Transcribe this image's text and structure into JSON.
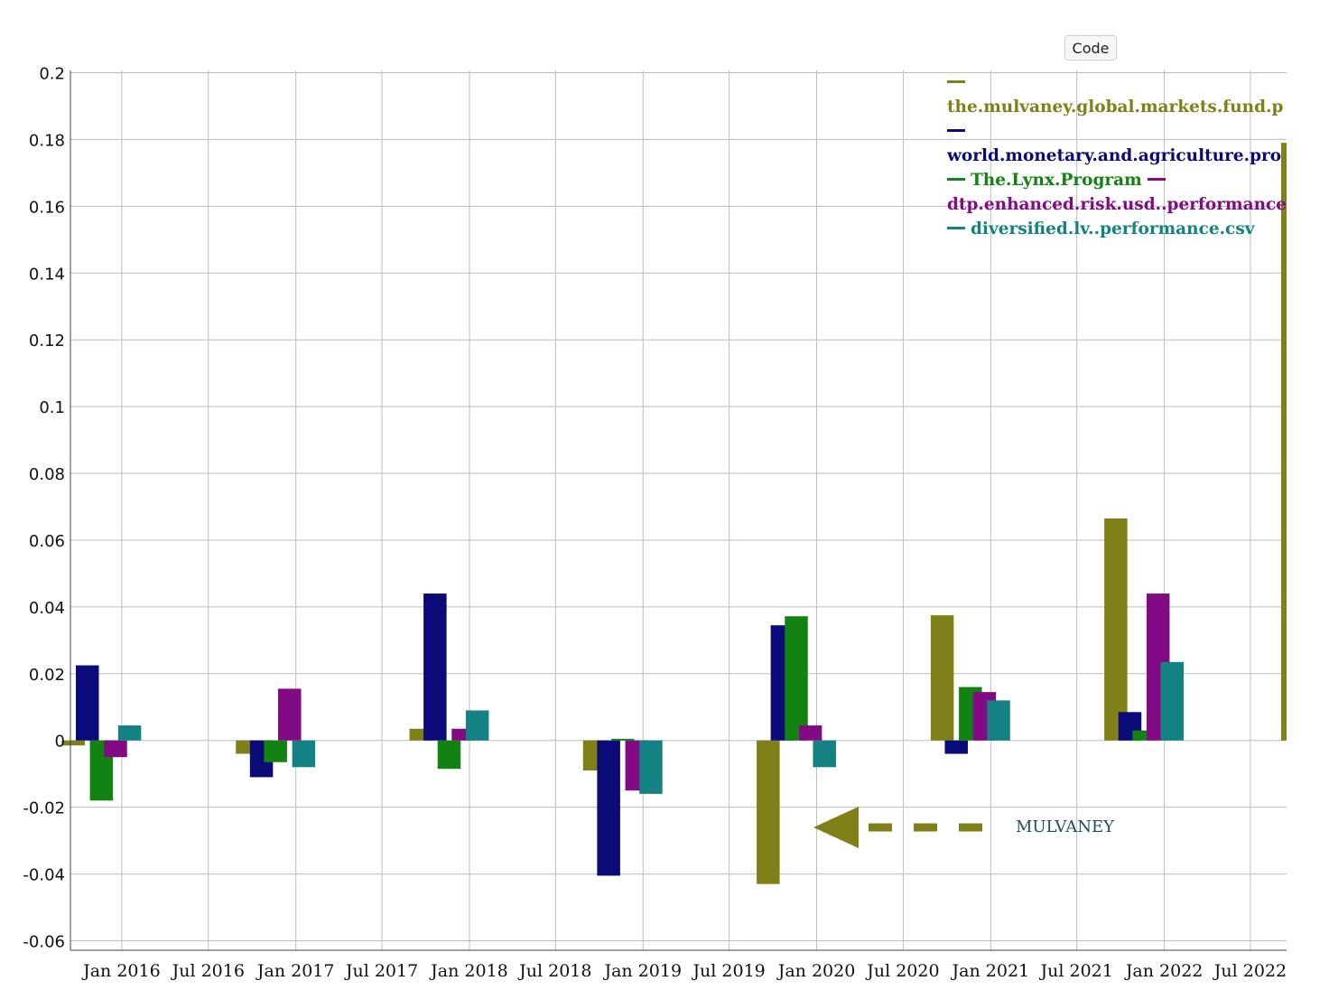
{
  "toolbar": {
    "code_label": "Code"
  },
  "annotation": {
    "text": "MULVANEY",
    "color": "#1f4e63",
    "arrow_color": "#808018"
  },
  "colors": {
    "mulvaney": "#808018",
    "world": "#0a0a78",
    "lynx": "#128212",
    "dtp": "#820a82",
    "diversified": "#148282"
  },
  "chart_data": {
    "type": "bar",
    "title": "",
    "xlabel": "",
    "ylabel": "",
    "ylim": [
      -0.06,
      0.2
    ],
    "y_ticks": [
      "0.2",
      "0.18",
      "0.16",
      "0.14",
      "0.12",
      "0.1",
      "0.08",
      "0.06",
      "0.04",
      "0.02",
      "0",
      "-0.02",
      "-0.04",
      "-0.06"
    ],
    "y_tick_values": [
      0.2,
      0.18,
      0.16,
      0.14,
      0.12,
      0.1,
      0.08,
      0.06,
      0.04,
      0.02,
      0,
      -0.02,
      -0.04,
      -0.06
    ],
    "x_range": [
      "2015-09-15",
      "2022-09-15"
    ],
    "x_ticks": [
      {
        "label": "Jan 2016",
        "date": "2016-01-01"
      },
      {
        "label": "Jul 2016",
        "date": "2016-07-01"
      },
      {
        "label": "Jan 2017",
        "date": "2017-01-01"
      },
      {
        "label": "Jul 2017",
        "date": "2017-07-01"
      },
      {
        "label": "Jan 2018",
        "date": "2018-01-01"
      },
      {
        "label": "Jul 2018",
        "date": "2018-07-01"
      },
      {
        "label": "Jan 2019",
        "date": "2019-01-01"
      },
      {
        "label": "Jul 2019",
        "date": "2019-07-01"
      },
      {
        "label": "Jan 2020",
        "date": "2020-01-01"
      },
      {
        "label": "Jul 2020",
        "date": "2020-07-01"
      },
      {
        "label": "Jan 2021",
        "date": "2021-01-01"
      },
      {
        "label": "Jul 2021",
        "date": "2021-07-01"
      },
      {
        "label": "Jan 2022",
        "date": "2022-01-01"
      },
      {
        "label": "Jul 2022",
        "date": "2022-07-01"
      }
    ],
    "grid": true,
    "legend_position": "top-right",
    "categories": [
      "2015",
      "2016",
      "2017",
      "2018",
      "2019",
      "2020",
      "2021",
      "2022"
    ],
    "category_dates": [
      "2015-12-31",
      "2016-12-31",
      "2017-12-31",
      "2018-12-31",
      "2019-12-31",
      "2020-12-31",
      "2021-12-31",
      "2022-12-31"
    ],
    "series": [
      {
        "name": "the.mulvaney.global.markets.fund.performance.csv",
        "legend_label": "the.mulvaney.global.markets.fund.p",
        "key": "mulvaney",
        "values": [
          -0.0015,
          -0.004,
          0.0035,
          -0.009,
          -0.043,
          0.0375,
          0.0665,
          0.179
        ]
      },
      {
        "name": "world.monetary.and.agriculture.program.performance.csv",
        "legend_label": "world.monetary.and.agriculture.pro",
        "key": "world",
        "values": [
          0.0225,
          -0.011,
          0.044,
          -0.0405,
          0.0345,
          -0.004,
          0.0085,
          null
        ]
      },
      {
        "name": "The.Lynx.Program",
        "legend_label": "The.Lynx.Program",
        "key": "lynx",
        "values": [
          -0.018,
          -0.0065,
          -0.0085,
          0.0005,
          0.0372,
          0.016,
          0.003,
          null
        ]
      },
      {
        "name": "dtp.enhanced.risk.usd..performance.csv",
        "legend_label": "dtp.enhanced.risk.usd..performance",
        "key": "dtp",
        "values": [
          -0.005,
          0.0155,
          0.0035,
          -0.015,
          0.0045,
          0.0145,
          0.044,
          null
        ]
      },
      {
        "name": "diversified.lv..performance.csv",
        "legend_label": "diversified.lv..performance.csv",
        "key": "diversified",
        "values": [
          0.0045,
          -0.008,
          0.009,
          -0.016,
          -0.008,
          0.012,
          0.0235,
          null
        ]
      }
    ]
  }
}
